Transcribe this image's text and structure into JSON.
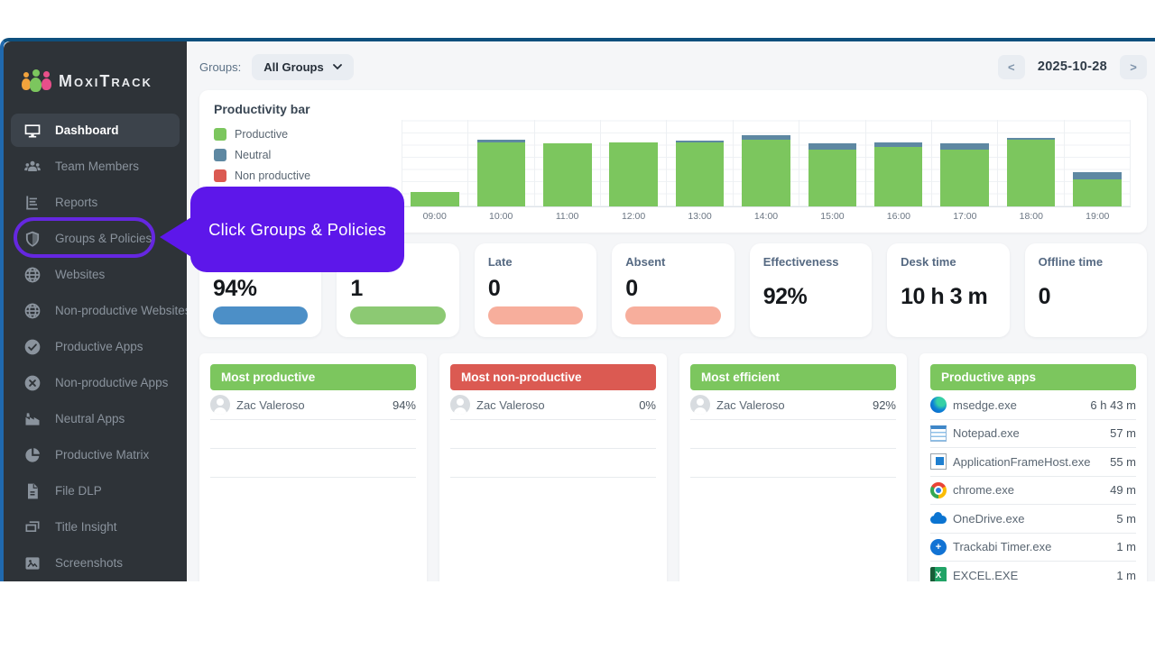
{
  "topbar": {
    "groups_label": "Groups:",
    "groups_value": "All Groups",
    "date": "2025-10-28",
    "prev_label": "<",
    "next_label": ">"
  },
  "sidebar": {
    "brand": "MoxiTrack",
    "items": [
      {
        "label": "Dashboard",
        "icon": "dashboard",
        "active": true
      },
      {
        "label": "Team Members",
        "icon": "team",
        "active": false
      },
      {
        "label": "Reports",
        "icon": "reports",
        "active": false
      },
      {
        "label": "Groups & Policies",
        "icon": "shield",
        "active": false,
        "highlighted": true
      },
      {
        "label": "Websites",
        "icon": "globe",
        "active": false
      },
      {
        "label": "Non-productive Websites",
        "icon": "globe",
        "active": false
      },
      {
        "label": "Productive Apps",
        "icon": "check-circle",
        "active": false
      },
      {
        "label": "Non-productive Apps",
        "icon": "x-circle",
        "active": false
      },
      {
        "label": "Neutral Apps",
        "icon": "factory",
        "active": false
      },
      {
        "label": "Productive Matrix",
        "icon": "pie",
        "active": false
      },
      {
        "label": "File DLP",
        "icon": "file",
        "active": false
      },
      {
        "label": "Title Insight",
        "icon": "card",
        "active": false
      },
      {
        "label": "Screenshots",
        "icon": "image",
        "active": false
      }
    ]
  },
  "tooltip": {
    "text": "Click Groups & Policies",
    "color": "#5D17EA"
  },
  "chart_data": {
    "type": "bar",
    "stacked": true,
    "title": "Productivity bar",
    "categories": [
      "09:00",
      "10:00",
      "11:00",
      "12:00",
      "13:00",
      "14:00",
      "15:00",
      "16:00",
      "17:00",
      "18:00",
      "19:00"
    ],
    "series": [
      {
        "name": "Productive",
        "color": "#7CC65E",
        "values": [
          10,
          45,
          44,
          45,
          45,
          47,
          40,
          42,
          40,
          47,
          19
        ]
      },
      {
        "name": "Neutral",
        "color": "#5E88A2",
        "values": [
          0,
          2,
          0,
          0,
          1,
          3,
          4,
          3,
          4,
          1,
          5
        ]
      },
      {
        "name": "Non productive",
        "color": "#DB5A52",
        "values": [
          0,
          0,
          0,
          0,
          0,
          0,
          0,
          0,
          0,
          0,
          0
        ]
      }
    ],
    "xlabel": "",
    "ylabel": "",
    "ylim": [
      0,
      60
    ],
    "unit": "minutes per hour",
    "grid": true,
    "legend_position": "left"
  },
  "stats": [
    {
      "label": "",
      "value": "94%",
      "pill_color": "#4C8FC7"
    },
    {
      "label": "",
      "value": "1",
      "pill_color": "#8CC973"
    },
    {
      "label": "Late",
      "value": "0",
      "pill_color": "#F7AE9C"
    },
    {
      "label": "Absent",
      "value": "0",
      "pill_color": "#F7AE9C"
    },
    {
      "label": "Effectiveness",
      "value": "92%",
      "pill_color": null
    },
    {
      "label": "Desk time",
      "value": "10 h 3 m",
      "pill_color": null
    },
    {
      "label": "Offline time",
      "value": "0",
      "pill_color": null
    }
  ],
  "leaderboards": [
    {
      "title": "Most productive",
      "header_color": "#7CC65E",
      "entries": [
        {
          "name": "Zac Valeroso",
          "value": "94%"
        }
      ],
      "empty_rows": 2
    },
    {
      "title": "Most non-productive",
      "header_color": "#DB5A52",
      "entries": [
        {
          "name": "Zac Valeroso",
          "value": "0%"
        }
      ],
      "empty_rows": 2
    },
    {
      "title": "Most efficient",
      "header_color": "#7CC65E",
      "entries": [
        {
          "name": "Zac Valeroso",
          "value": "92%"
        }
      ],
      "empty_rows": 2
    }
  ],
  "apps": {
    "title": "Productive apps",
    "header_color": "#7CC65E",
    "entries": [
      {
        "icon": "edge",
        "name": "msedge.exe",
        "duration": "6 h 43 m"
      },
      {
        "icon": "notepad",
        "name": "Notepad.exe",
        "duration": "57 m"
      },
      {
        "icon": "appframe",
        "name": "ApplicationFrameHost.exe",
        "duration": "55 m"
      },
      {
        "icon": "chrome",
        "name": "chrome.exe",
        "duration": "49 m"
      },
      {
        "icon": "onedrive",
        "name": "OneDrive.exe",
        "duration": "5 m"
      },
      {
        "icon": "trackabi",
        "name": "Trackabi Timer.exe",
        "duration": "1 m"
      },
      {
        "icon": "excel",
        "name": "EXCEL.EXE",
        "duration": "1 m"
      }
    ]
  }
}
